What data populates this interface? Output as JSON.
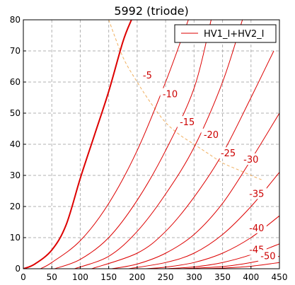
{
  "chart_data": {
    "type": "line",
    "title": "5992 (triode)",
    "xlabel": "",
    "ylabel": "",
    "xlim": [
      0,
      450
    ],
    "ylim": [
      0,
      80
    ],
    "x_ticks": [
      0,
      50,
      100,
      150,
      200,
      250,
      300,
      350,
      400,
      450
    ],
    "y_ticks": [
      0,
      10,
      20,
      30,
      40,
      50,
      60,
      70,
      80
    ],
    "grid": true,
    "legend": {
      "position": "top-right",
      "entries": [
        "HV1_I+HV2_I"
      ]
    },
    "series_color": "#dd0000",
    "dissipation_color": "#f0b060",
    "series": [
      {
        "label": "",
        "grid_voltage": 0,
        "bold": true,
        "points": [
          [
            0,
            0
          ],
          [
            20,
            1.5
          ],
          [
            50,
            6
          ],
          [
            75,
            14
          ],
          [
            100,
            29
          ],
          [
            125,
            43
          ],
          [
            150,
            57
          ],
          [
            175,
            73
          ],
          [
            190,
            80
          ]
        ]
      },
      {
        "label": "-5",
        "grid_voltage": -5,
        "points": [
          [
            30,
            0
          ],
          [
            50,
            2
          ],
          [
            100,
            9
          ],
          [
            150,
            21
          ],
          [
            200,
            38
          ],
          [
            250,
            60
          ],
          [
            290,
            80
          ]
        ]
      },
      {
        "label": "-10",
        "grid_voltage": -10,
        "points": [
          [
            55,
            0
          ],
          [
            100,
            3
          ],
          [
            150,
            10
          ],
          [
            200,
            22
          ],
          [
            250,
            38
          ],
          [
            300,
            58
          ],
          [
            330,
            80
          ]
        ]
      },
      {
        "label": "-15",
        "grid_voltage": -15,
        "points": [
          [
            90,
            0
          ],
          [
            150,
            4
          ],
          [
            200,
            12
          ],
          [
            250,
            24
          ],
          [
            300,
            39
          ],
          [
            350,
            60
          ],
          [
            385,
            80
          ]
        ]
      },
      {
        "label": "-20",
        "grid_voltage": -20,
        "points": [
          [
            120,
            0
          ],
          [
            200,
            5
          ],
          [
            250,
            12
          ],
          [
            300,
            23
          ],
          [
            350,
            37
          ],
          [
            400,
            55
          ],
          [
            440,
            70
          ]
        ]
      },
      {
        "label": "-25",
        "grid_voltage": -25,
        "points": [
          [
            155,
            0
          ],
          [
            200,
            1.5
          ],
          [
            250,
            5
          ],
          [
            300,
            11
          ],
          [
            350,
            21
          ],
          [
            400,
            35
          ],
          [
            450,
            50
          ]
        ]
      },
      {
        "label": "-30",
        "grid_voltage": -30,
        "points": [
          [
            185,
            0
          ],
          [
            250,
            2
          ],
          [
            300,
            5
          ],
          [
            350,
            11
          ],
          [
            400,
            20
          ],
          [
            450,
            31
          ]
        ]
      },
      {
        "label": "-35",
        "grid_voltage": -35,
        "points": [
          [
            215,
            0
          ],
          [
            250,
            0.5
          ],
          [
            300,
            2
          ],
          [
            350,
            5
          ],
          [
            400,
            10
          ],
          [
            450,
            17
          ]
        ]
      },
      {
        "label": "-40",
        "grid_voltage": -40,
        "points": [
          [
            250,
            0
          ],
          [
            300,
            0.6
          ],
          [
            350,
            2
          ],
          [
            400,
            4.5
          ],
          [
            450,
            8
          ]
        ]
      },
      {
        "label": "-45",
        "grid_voltage": -45,
        "points": [
          [
            280,
            0
          ],
          [
            350,
            0.7
          ],
          [
            400,
            2
          ],
          [
            450,
            4
          ]
        ]
      },
      {
        "label": "-50",
        "grid_voltage": -50,
        "points": [
          [
            310,
            0
          ],
          [
            350,
            0.2
          ],
          [
            400,
            0.8
          ],
          [
            450,
            2
          ]
        ]
      }
    ],
    "dissipation_curve": [
      [
        150,
        80
      ],
      [
        175,
        68
      ],
      [
        200,
        60
      ],
      [
        225,
        53
      ],
      [
        250,
        47
      ],
      [
        275,
        43
      ],
      [
        300,
        40
      ],
      [
        325,
        37
      ],
      [
        350,
        34
      ],
      [
        375,
        32
      ],
      [
        400,
        30
      ],
      [
        420,
        28.5
      ]
    ],
    "curve_labels": [
      {
        "text": "-5",
        "x": 218,
        "y": 62
      },
      {
        "text": "-10",
        "x": 258,
        "y": 56
      },
      {
        "text": "-15",
        "x": 288,
        "y": 47
      },
      {
        "text": "-20",
        "x": 330,
        "y": 43
      },
      {
        "text": "-25",
        "x": 360,
        "y": 37
      },
      {
        "text": "-30",
        "x": 400,
        "y": 35
      },
      {
        "text": "-35",
        "x": 410,
        "y": 24
      },
      {
        "text": "-40",
        "x": 410,
        "y": 13
      },
      {
        "text": "-45",
        "x": 410,
        "y": 6
      },
      {
        "text": "-50",
        "x": 430,
        "y": 4
      }
    ]
  }
}
